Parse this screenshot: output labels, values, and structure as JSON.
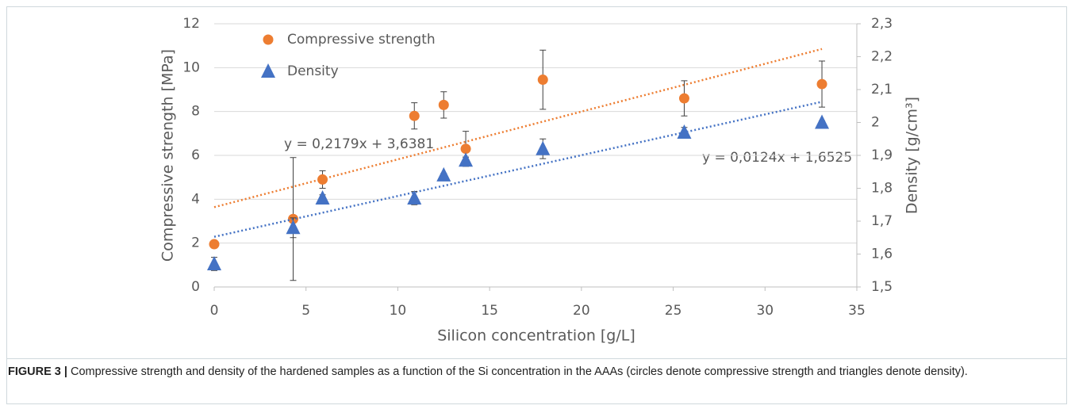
{
  "chart_data": {
    "type": "scatter",
    "x_label": "Silicon concentration [g/L]",
    "y_label": "Compressive strength [MPa]",
    "y2_label": "Density [g/cm³]",
    "x": [
      0,
      4.3,
      5.9,
      10.9,
      12.5,
      13.7,
      17.9,
      25.6,
      33.1
    ],
    "series": [
      {
        "name": "Compressive strength",
        "color": "#ed7d31",
        "marker": "circle",
        "axis": "y",
        "values": [
          1.95,
          3.1,
          4.9,
          7.8,
          8.3,
          6.3,
          9.45,
          8.6,
          9.25
        ],
        "errors": [
          0.1,
          2.8,
          0.4,
          0.6,
          0.6,
          0.8,
          1.35,
          0.8,
          1.05
        ],
        "trendline": {
          "slope": 0.2179,
          "intercept": 3.6381,
          "label": "y = 0,2179x + 3,6381"
        }
      },
      {
        "name": "Density",
        "color": "#4472c4",
        "marker": "triangle",
        "axis": "y2",
        "values": [
          1.57,
          1.68,
          1.77,
          1.77,
          1.84,
          1.885,
          1.92,
          1.97,
          2.0
        ],
        "errors": [
          0.02,
          0.03,
          0.01,
          0.02,
          0.005,
          0.01,
          0.03,
          0.015,
          0.005
        ],
        "trendline": {
          "slope": 0.0124,
          "intercept": 1.6525,
          "label": "y = 0,0124x + 1,6525"
        }
      }
    ],
    "xlim": [
      0,
      35
    ],
    "xticks": [
      0,
      5,
      10,
      15,
      20,
      25,
      30,
      35
    ],
    "ylim": [
      0,
      12
    ],
    "yticks": [
      0,
      2,
      4,
      6,
      8,
      10,
      12
    ],
    "y2lim": [
      1.5,
      2.3
    ],
    "y2ticks": [
      {
        "value": 1.5,
        "label": "1,5"
      },
      {
        "value": 1.6,
        "label": "1,6"
      },
      {
        "value": 1.7,
        "label": "1,7"
      },
      {
        "value": 1.8,
        "label": "1,8"
      },
      {
        "value": 1.9,
        "label": "1,9"
      },
      2,
      {
        "value": 2.1,
        "label": "2,1"
      },
      {
        "value": 2.2,
        "label": "2,2"
      },
      {
        "value": 2.3,
        "label": "2,3"
      }
    ],
    "grid": true
  },
  "caption": {
    "label": "FIGURE 3 |",
    "text": " Compressive strength and density of the hardened samples as a function of the Si concentration in the AAAs (circles denote compressive strength and triangles denote density)."
  }
}
